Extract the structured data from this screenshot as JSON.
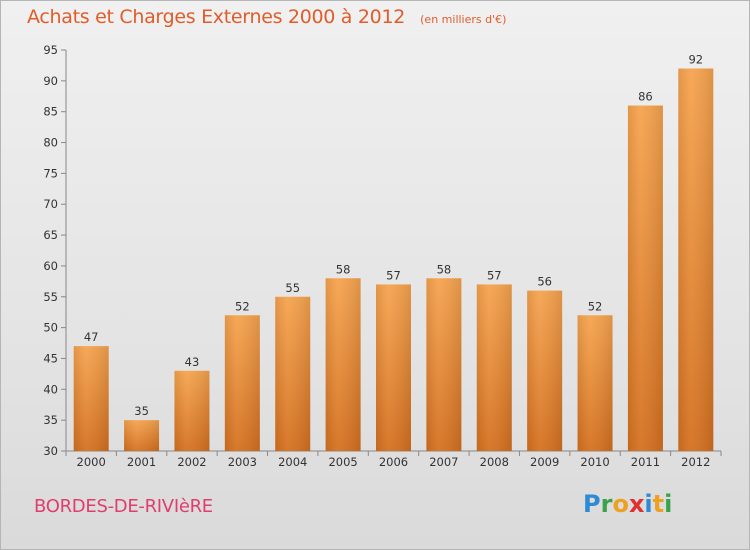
{
  "chart_data": {
    "type": "bar",
    "title": "Achats et Charges Externes 2000 à 2012",
    "subtitle": "(en milliers d'€)",
    "categories": [
      "2000",
      "2001",
      "2002",
      "2003",
      "2004",
      "2005",
      "2006",
      "2007",
      "2008",
      "2009",
      "2010",
      "2011",
      "2012"
    ],
    "values": [
      47,
      35,
      43,
      52,
      55,
      58,
      57,
      58,
      57,
      56,
      52,
      86,
      92
    ],
    "ylim": [
      30,
      95
    ],
    "yticks": [
      30,
      35,
      40,
      45,
      50,
      55,
      60,
      65,
      70,
      75,
      80,
      85,
      90,
      95
    ],
    "grid": false,
    "bar_color_top": "#f6a34e",
    "bar_color_bottom": "#d4701f"
  },
  "commune": "BORDES-DE-RIVIèRE",
  "logo": {
    "text": "Proxiti"
  }
}
